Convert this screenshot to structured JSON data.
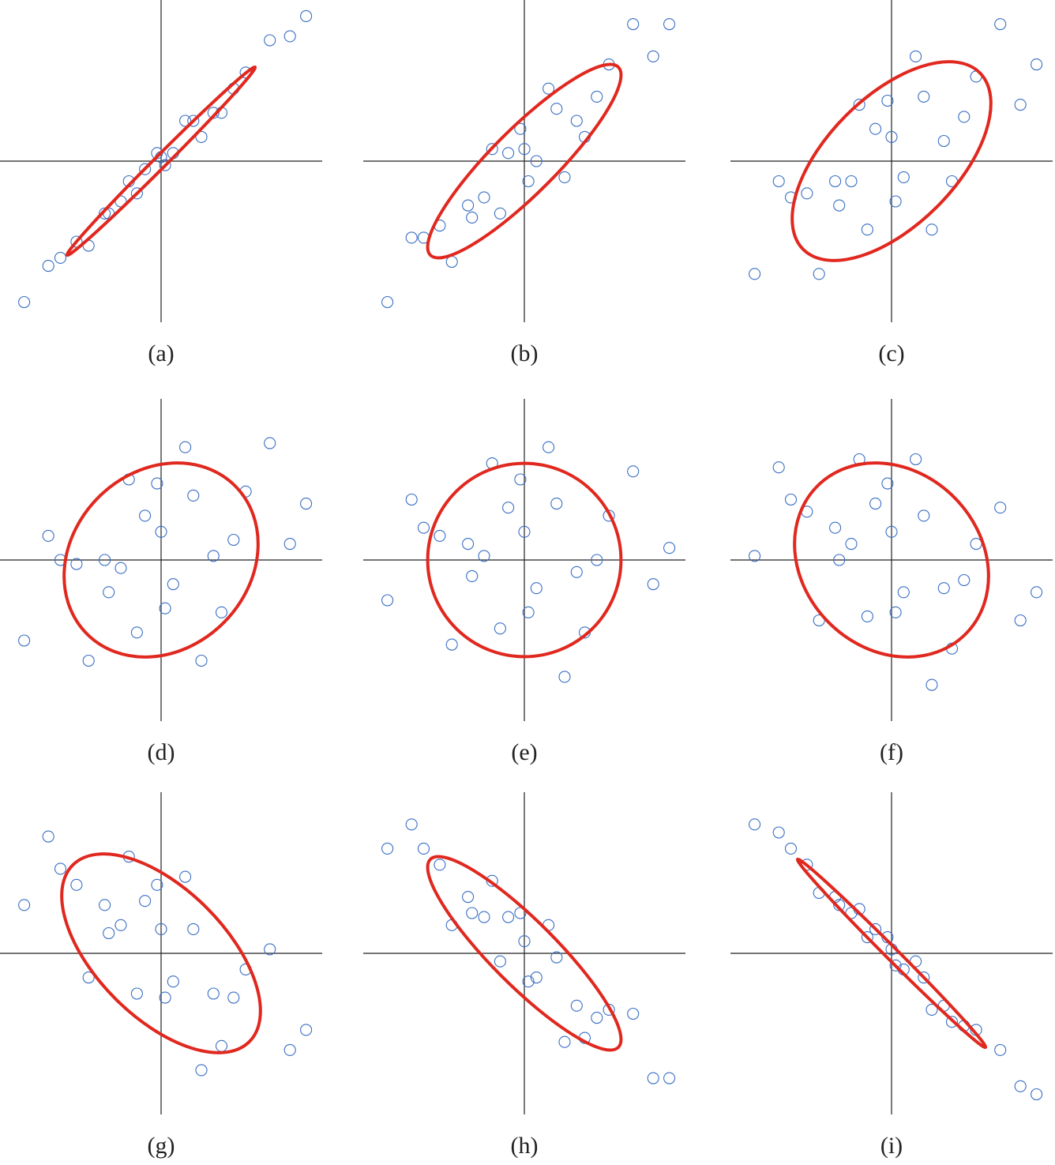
{
  "chart_data": [
    {
      "type": "scatter",
      "title": "(a)",
      "color": "#3a6fc4",
      "xlim": [
        -4,
        4
      ],
      "ylim": [
        -4,
        4
      ],
      "x": [
        0.3,
        -1.4,
        2.1,
        -0.6,
        1.3,
        -2.5,
        3.2,
        -0.1,
        0.8,
        -3.4,
        1.5,
        -1.0,
        0.0,
        2.7,
        -1.8,
        0.6,
        -1.3,
        3.6,
        -2.8,
        1.0,
        -0.4,
        1.8,
        -2.1,
        0.1,
        -0.8
      ],
      "values": [
        0.2,
        -1.3,
        2.2,
        -0.8,
        1.2,
        -2.4,
        3.1,
        0.2,
        1.0,
        -3.5,
        1.2,
        -1.0,
        0.1,
        3.0,
        -2.1,
        1.0,
        -1.3,
        3.6,
        -2.6,
        0.6,
        -0.2,
        1.8,
        -2.0,
        -0.1,
        -0.5
      ],
      "ellipse": {
        "color": "#e0281f",
        "cx": 0,
        "cy": 0,
        "rx": 3.3,
        "ry": 0.15,
        "angle": 45
      }
    },
    {
      "type": "scatter",
      "title": "(b)",
      "color": "#3a6fc4",
      "xlim": [
        -4,
        4
      ],
      "ylim": [
        -4,
        4
      ],
      "x": [
        0.3,
        -1.4,
        2.1,
        -0.6,
        1.3,
        -2.5,
        3.2,
        -0.1,
        0.8,
        -3.4,
        1.5,
        -1.0,
        0.0,
        2.7,
        -1.8,
        0.6,
        -1.3,
        3.6,
        -2.8,
        1.0,
        -0.4,
        1.8,
        -2.1,
        0.1,
        -0.8
      ],
      "values": [
        0.0,
        -1.1,
        2.4,
        -1.3,
        1.0,
        -1.9,
        2.6,
        0.8,
        1.3,
        -3.5,
        0.6,
        -0.9,
        0.3,
        3.4,
        -2.5,
        1.8,
        -1.4,
        3.4,
        -1.9,
        -0.4,
        0.2,
        1.6,
        -1.6,
        -0.5,
        0.3
      ],
      "ellipse": {
        "color": "#e0281f",
        "cx": 0,
        "cy": 0,
        "rx": 3.3,
        "ry": 0.8,
        "angle": 45
      }
    },
    {
      "type": "scatter",
      "title": "(c)",
      "color": "#3a6fc4",
      "xlim": [
        -4,
        4
      ],
      "ylim": [
        -4,
        4
      ],
      "x": [
        0.3,
        -1.4,
        2.1,
        -0.6,
        1.3,
        -2.5,
        3.2,
        -0.1,
        0.8,
        -3.4,
        1.5,
        -1.0,
        0.0,
        2.7,
        -1.8,
        0.6,
        -1.3,
        3.6,
        -2.8,
        1.0,
        -0.4,
        1.8,
        -2.1,
        0.1,
        -0.8
      ],
      "values": [
        -0.4,
        -0.5,
        2.1,
        -1.7,
        0.5,
        -0.9,
        1.4,
        1.5,
        1.6,
        -2.8,
        -0.5,
        -0.5,
        0.6,
        3.4,
        -2.8,
        2.6,
        -1.1,
        2.4,
        -0.5,
        -1.7,
        0.8,
        1.1,
        -0.8,
        -1.0,
        1.4
      ],
      "ellipse": {
        "color": "#e0281f",
        "cx": 0,
        "cy": 0,
        "rx": 3.1,
        "ry": 1.6,
        "angle": 45
      }
    },
    {
      "type": "scatter",
      "title": "(d)",
      "color": "#3a6fc4",
      "xlim": [
        -4,
        4
      ],
      "ylim": [
        -4,
        4
      ],
      "x": [
        0.3,
        -1.4,
        2.1,
        -0.6,
        1.3,
        -2.5,
        3.2,
        -0.1,
        0.8,
        -3.4,
        1.5,
        -1.0,
        0.0,
        2.7,
        -1.8,
        0.6,
        -1.3,
        3.6,
        -2.8,
        1.0,
        -0.4,
        1.8,
        -2.1,
        0.1,
        -0.8
      ],
      "values": [
        -0.6,
        0.0,
        1.7,
        -1.8,
        0.1,
        0.0,
        0.4,
        1.9,
        1.6,
        -2.0,
        -1.3,
        -0.2,
        0.7,
        2.9,
        -2.5,
        2.8,
        -0.8,
        1.4,
        0.6,
        -2.5,
        1.1,
        0.5,
        -0.1,
        -1.2,
        2.0
      ],
      "ellipse": {
        "color": "#e0281f",
        "cx": 0,
        "cy": 0,
        "rx": 2.6,
        "ry": 2.2,
        "angle": 45
      }
    },
    {
      "type": "scatter",
      "title": "(e)",
      "color": "#3a6fc4",
      "xlim": [
        -4,
        4
      ],
      "ylim": [
        -4,
        4
      ],
      "x": [
        0.3,
        -1.4,
        2.1,
        -0.6,
        1.3,
        -2.5,
        3.2,
        -0.1,
        0.8,
        -3.4,
        1.5,
        -1.0,
        0.0,
        2.7,
        -1.8,
        0.6,
        -1.3,
        3.6,
        -2.8,
        1.0,
        -0.4,
        1.8,
        -2.1,
        0.1,
        -0.8
      ],
      "values": [
        -0.7,
        0.4,
        1.1,
        -1.7,
        -0.3,
        0.8,
        -0.6,
        2.0,
        1.4,
        -1.0,
        -1.8,
        0.1,
        0.7,
        2.2,
        -2.1,
        2.8,
        -0.4,
        0.3,
        1.5,
        -2.9,
        1.3,
        0.0,
        0.6,
        -1.3,
        2.4
      ],
      "ellipse": {
        "color": "#e0281f",
        "cx": 0,
        "cy": 0,
        "rx": 2.4,
        "ry": 2.4,
        "angle": 0
      }
    },
    {
      "type": "scatter",
      "title": "(f)",
      "color": "#3a6fc4",
      "xlim": [
        -4,
        4
      ],
      "ylim": [
        -4,
        4
      ],
      "x": [
        0.3,
        -1.4,
        2.1,
        -0.6,
        1.3,
        -2.5,
        3.2,
        -0.1,
        0.8,
        -3.4,
        1.5,
        -1.0,
        0.0,
        2.7,
        -1.8,
        0.6,
        -1.3,
        3.6,
        -2.8,
        1.0,
        -0.4,
        1.8,
        -2.1,
        0.1,
        -0.8
      ],
      "values": [
        -0.8,
        0.8,
        0.4,
        -1.4,
        -0.7,
        1.5,
        -1.5,
        1.9,
        1.1,
        0.1,
        -2.2,
        0.4,
        0.7,
        1.3,
        -1.5,
        2.5,
        0.0,
        -0.8,
        2.3,
        -3.1,
        1.4,
        -0.5,
        1.2,
        -1.3,
        2.5
      ],
      "ellipse": {
        "color": "#e0281f",
        "cx": 0,
        "cy": 0,
        "rx": 2.6,
        "ry": 2.2,
        "angle": -45
      }
    },
    {
      "type": "scatter",
      "title": "(g)",
      "color": "#3a6fc4",
      "xlim": [
        -4,
        4
      ],
      "ylim": [
        -4,
        4
      ],
      "x": [
        0.3,
        -1.4,
        2.1,
        -0.6,
        1.3,
        -2.5,
        3.2,
        -0.1,
        0.8,
        -3.4,
        1.5,
        -1.0,
        0.0,
        2.7,
        -1.8,
        0.6,
        -1.3,
        3.6,
        -2.8,
        1.0,
        -0.4,
        1.8,
        -2.1,
        0.1,
        -0.8
      ],
      "values": [
        -0.7,
        1.2,
        -0.4,
        -1.0,
        -1.0,
        2.1,
        -2.4,
        1.7,
        0.6,
        1.2,
        -2.3,
        0.7,
        0.6,
        0.1,
        -0.6,
        1.9,
        0.5,
        -1.9,
        2.9,
        -2.9,
        1.3,
        -1.1,
        1.7,
        -1.1,
        2.4
      ],
      "ellipse": {
        "color": "#e0281f",
        "cx": 0,
        "cy": 0,
        "rx": 3.1,
        "ry": 1.6,
        "angle": -45
      }
    },
    {
      "type": "scatter",
      "title": "(h)",
      "color": "#3a6fc4",
      "xlim": [
        -4,
        4
      ],
      "ylim": [
        -4,
        4
      ],
      "x": [
        0.3,
        -1.4,
        2.1,
        -0.6,
        1.3,
        -2.5,
        3.2,
        -0.1,
        0.8,
        -3.4,
        1.5,
        -1.0,
        0.0,
        2.7,
        -1.8,
        0.6,
        -1.3,
        3.6,
        -2.8,
        1.0,
        -0.4,
        1.8,
        -2.1,
        0.1,
        -0.8
      ],
      "values": [
        -0.6,
        1.4,
        -1.4,
        -0.2,
        -1.3,
        2.6,
        -3.1,
        1.0,
        -0.1,
        2.6,
        -2.1,
        0.9,
        0.3,
        -1.5,
        0.7,
        0.7,
        1.0,
        -3.1,
        3.2,
        -2.2,
        0.9,
        -1.6,
        2.2,
        -0.7,
        1.8
      ],
      "ellipse": {
        "color": "#e0281f",
        "cx": 0,
        "cy": 0,
        "rx": 3.3,
        "ry": 0.8,
        "angle": -45
      }
    },
    {
      "type": "scatter",
      "title": "(i)",
      "color": "#3a6fc4",
      "xlim": [
        -4,
        4
      ],
      "ylim": [
        -4,
        4
      ],
      "x": [
        0.3,
        -1.4,
        2.1,
        -0.6,
        1.3,
        -2.5,
        3.2,
        -0.1,
        0.8,
        -3.4,
        1.5,
        -1.0,
        0.0,
        2.7,
        -1.8,
        0.6,
        -1.3,
        3.6,
        -2.8,
        1.0,
        -0.4,
        1.8,
        -2.1,
        0.1,
        -0.8
      ],
      "values": [
        -0.4,
        1.4,
        -1.9,
        0.4,
        -1.3,
        2.6,
        -3.3,
        0.4,
        -0.6,
        3.2,
        -1.7,
        1.0,
        0.1,
        -2.4,
        1.5,
        -0.2,
        1.2,
        -3.5,
        3.0,
        -1.4,
        0.6,
        -1.8,
        2.2,
        -0.3,
        1.1
      ],
      "ellipse": {
        "color": "#e0281f",
        "cx": 0,
        "cy": 0,
        "rx": 3.3,
        "ry": 0.15,
        "angle": -45
      }
    }
  ]
}
